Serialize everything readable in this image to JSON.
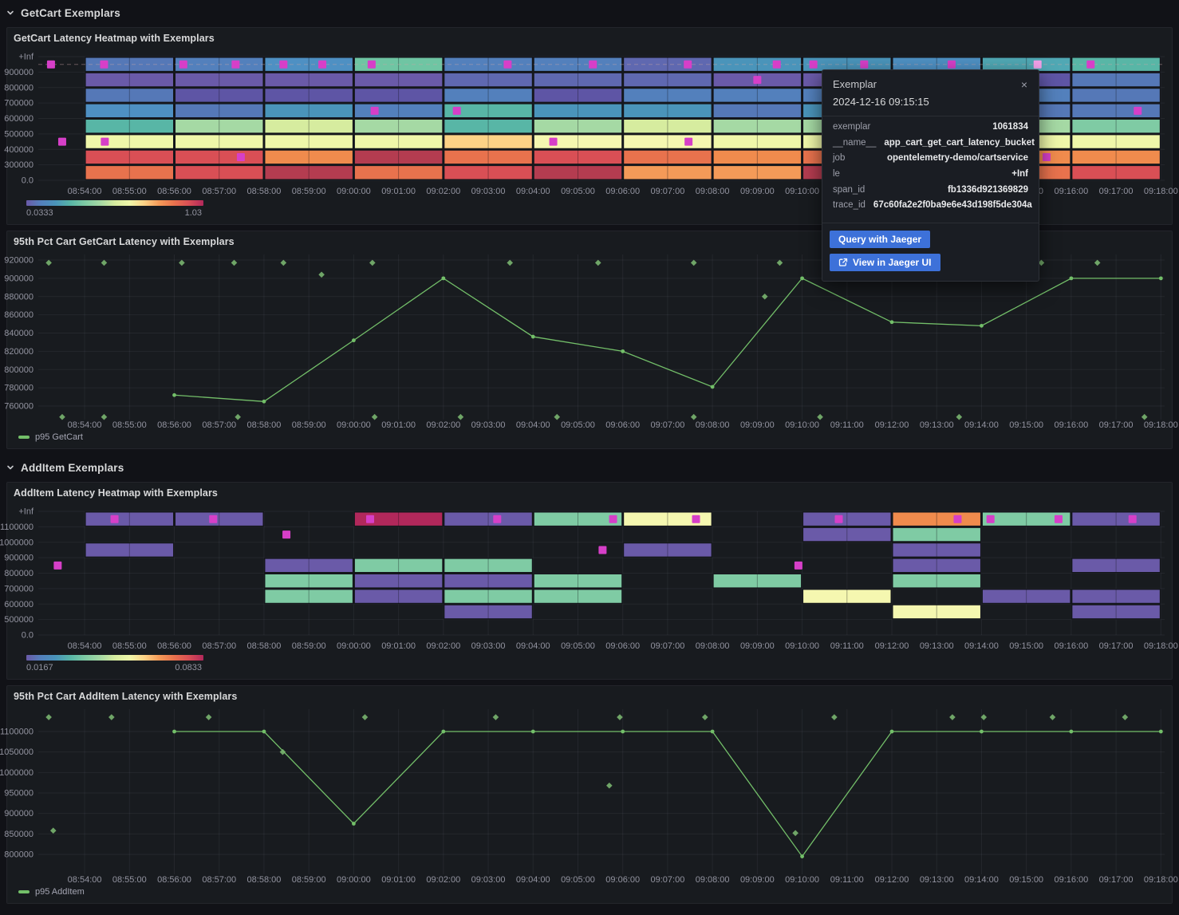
{
  "colors": {
    "background": "#111217",
    "panel": "#181b1f",
    "accent_button": "#3d71d9",
    "series_green": "#73bf69",
    "exemplar": "#d63fc8",
    "exemplar_highlight": "#f2a0e8",
    "axis_text": "rgba(204,204,220,0.68)"
  },
  "palette": {
    "pu": "#6a5aa8",
    "dp": "#5e55a5",
    "bp": "#5f68b0",
    "sb": "#5578b7",
    "bl": "#5380bc",
    "lb": "#4e90c3",
    "tb": "#4a94ba",
    "tt": "#50a8b4",
    "te": "#58b6a6",
    "gt": "#6fc5a3",
    "gr": "#7fcba4",
    "lg": "#a5d9a4",
    "yg": "#d6ec9f",
    "py": "#eff7a9",
    "cy": "#f5f7b0",
    "pe": "#fcd286",
    "or": "#f08b4d",
    "lo": "#f49a58",
    "od": "#e8724d",
    "re": "#d94f55",
    "dr": "#b43c50",
    "cr": "#b1285b"
  },
  "colorbar_stops": [
    "#6a5aa8",
    "#5380bc",
    "#4a94ba",
    "#58b6a6",
    "#7fcba4",
    "#a5d9a4",
    "#d6ec9f",
    "#eff7a9",
    "#fcd286",
    "#f49a58",
    "#e8724d",
    "#d94f55",
    "#b1285b"
  ],
  "time_axis": {
    "start": "08:52:58",
    "end": "09:18:05",
    "labels": [
      "08:54:00",
      "08:55:00",
      "08:56:00",
      "08:57:00",
      "08:58:00",
      "08:59:00",
      "09:00:00",
      "09:01:00",
      "09:02:00",
      "09:03:00",
      "09:04:00",
      "09:05:00",
      "09:06:00",
      "09:07:00",
      "09:08:00",
      "09:09:00",
      "09:10:00",
      "09:11:00",
      "09:12:00",
      "09:13:00",
      "09:14:00",
      "09:15:00",
      "09:16:00",
      "09:17:00",
      "09:18:00"
    ]
  },
  "sections": [
    {
      "title": "GetCart Exemplars"
    },
    {
      "title": "AddItem Exemplars"
    }
  ],
  "chart_data": [
    {
      "id": "getcart_heatmap",
      "type": "heatmap",
      "title": "GetCart Latency Heatmap with Exemplars",
      "y_ticks": [
        "+Inf",
        "900000",
        "800000",
        "700000",
        "600000",
        "500000",
        "400000",
        "300000",
        "0.0"
      ],
      "col_start": "08:54:00",
      "col_width_sec": 120,
      "dashed_exemplar_line": true,
      "columns": [
        [
          "sb",
          "pu",
          "sb",
          "lb",
          "te",
          "py",
          "re",
          "od"
        ],
        [
          "bl",
          "pu",
          "dp",
          "sb",
          "lg",
          "py",
          "re",
          "re"
        ],
        [
          "lb",
          "pu",
          "dp",
          "tb",
          "yg",
          "py",
          "or",
          "dr"
        ],
        [
          "gt",
          "pu",
          "dp",
          "bl",
          "lg",
          "py",
          "dr",
          "od"
        ],
        [
          "bl",
          "bp",
          "bl",
          "te",
          "te",
          "pe",
          "od",
          "re"
        ],
        [
          "bl",
          "bp",
          "dp",
          "tb",
          "lg",
          "cy",
          "re",
          "dr"
        ],
        [
          "bp",
          "bp",
          "bl",
          "tb",
          "yg",
          "cy",
          "od",
          "lo"
        ],
        [
          "tb",
          "pu",
          "bl",
          "sb",
          "lg",
          "py",
          "or",
          "lo"
        ],
        [
          "tb",
          "pu",
          "bl",
          "tb",
          "lg",
          "py",
          "od",
          "dr"
        ],
        [
          "lb",
          "pu",
          "dp",
          "tb",
          "lg",
          "py",
          "re",
          "od"
        ],
        [
          "tt",
          "dp",
          "bl",
          "sb",
          "lg",
          "py",
          "or",
          "od"
        ],
        [
          "te",
          "sb",
          "sb",
          "sb",
          "gr",
          "py",
          "or",
          "re"
        ]
      ],
      "exemplars": [
        [
          "08:53:15",
          0
        ],
        [
          "08:54:26",
          0
        ],
        [
          "08:56:12",
          0
        ],
        [
          "08:57:22",
          0
        ],
        [
          "08:58:26",
          0
        ],
        [
          "08:59:18",
          0
        ],
        [
          "09:00:24",
          0
        ],
        [
          "09:03:26",
          0
        ],
        [
          "09:05:20",
          0
        ],
        [
          "09:07:27",
          0
        ],
        [
          "09:09:26",
          0
        ],
        [
          "09:10:15",
          0
        ],
        [
          "09:11:23",
          0
        ],
        [
          "09:13:20",
          0
        ],
        [
          "09:15:15",
          0,
          true
        ],
        [
          "09:16:26",
          0
        ],
        [
          "09:09:00",
          1
        ],
        [
          "09:00:28",
          3
        ],
        [
          "09:02:18",
          3
        ],
        [
          "09:17:29",
          3
        ],
        [
          "08:53:30",
          5
        ],
        [
          "08:54:27",
          5
        ],
        [
          "09:04:27",
          5
        ],
        [
          "09:07:28",
          5
        ],
        [
          "08:57:29",
          6
        ],
        [
          "09:15:27",
          6
        ]
      ],
      "legend": {
        "min": "0.0333",
        "max": "1.03"
      }
    },
    {
      "id": "getcart_line",
      "type": "line",
      "title": "95th Pct Cart GetCart Latency with Exemplars",
      "y_ticks": [
        920000,
        900000,
        880000,
        860000,
        840000,
        820000,
        800000,
        780000,
        760000
      ],
      "series": [
        {
          "name": "p95 GetCart",
          "points": [
            [
              "08:56:00",
              772000
            ],
            [
              "08:58:00",
              765000
            ],
            [
              "09:00:00",
              832000
            ],
            [
              "09:02:00",
              900000
            ],
            [
              "09:04:00",
              836000
            ],
            [
              "09:06:00",
              820000
            ],
            [
              "09:08:00",
              781000
            ],
            [
              "09:10:00",
              900000
            ],
            [
              "09:12:00",
              852000
            ],
            [
              "09:14:00",
              848000
            ],
            [
              "09:16:00",
              900000
            ],
            [
              "09:18:00",
              900000
            ]
          ]
        }
      ],
      "exemplars": [
        [
          "08:53:12",
          917000
        ],
        [
          "08:54:26",
          917000
        ],
        [
          "08:56:10",
          917000
        ],
        [
          "08:57:20",
          917000
        ],
        [
          "08:58:26",
          917000
        ],
        [
          "08:59:17",
          904000
        ],
        [
          "09:00:25",
          917000
        ],
        [
          "09:03:29",
          917000
        ],
        [
          "09:05:27",
          917000
        ],
        [
          "09:07:35",
          917000
        ],
        [
          "09:09:10",
          880000
        ],
        [
          "09:09:30",
          917000
        ],
        [
          "09:15:20",
          917000
        ],
        [
          "09:16:35",
          917000
        ],
        [
          "08:53:30",
          748000
        ],
        [
          "08:54:26",
          748000
        ],
        [
          "08:57:25",
          748000
        ],
        [
          "09:00:28",
          748000
        ],
        [
          "09:02:23",
          748000
        ],
        [
          "09:04:32",
          748000
        ],
        [
          "09:07:35",
          748000
        ],
        [
          "09:10:24",
          748000
        ],
        [
          "09:13:30",
          748000
        ],
        [
          "09:17:38",
          748000
        ]
      ]
    },
    {
      "id": "additem_heatmap",
      "type": "heatmap",
      "title": "AddItem Latency Heatmap with Exemplars",
      "y_ticks": [
        "+Inf",
        "1100000",
        "1000000",
        "900000",
        "800000",
        "700000",
        "600000",
        "500000",
        "0.0"
      ],
      "col_start": "08:54:00",
      "col_width_sec": 120,
      "dashed_exemplar_line": false,
      "columns": [
        [
          "pu",
          null,
          "pu",
          null,
          null,
          null,
          null,
          null
        ],
        [
          "pu",
          null,
          null,
          null,
          null,
          null,
          null,
          null
        ],
        [
          null,
          null,
          null,
          "pu",
          "gr",
          "gr",
          null,
          null
        ],
        [
          "cr",
          null,
          null,
          "gr",
          "pu",
          "pu",
          null,
          null
        ],
        [
          "pu",
          null,
          null,
          "gr",
          "pu",
          "gr",
          "pu",
          null
        ],
        [
          "gr",
          null,
          null,
          null,
          "gr",
          "gr",
          null,
          null
        ],
        [
          "cy",
          null,
          "pu",
          null,
          null,
          null,
          null,
          null
        ],
        [
          null,
          null,
          null,
          null,
          "gr",
          null,
          null,
          null
        ],
        [
          "pu",
          "pu",
          null,
          null,
          null,
          "cy",
          null,
          null
        ],
        [
          "or",
          "gr",
          "pu",
          "pu",
          "gr",
          null,
          "cy",
          null
        ],
        [
          "gr",
          null,
          null,
          null,
          null,
          "pu",
          null,
          null
        ],
        [
          "pu",
          null,
          null,
          "pu",
          null,
          "pu",
          "pu",
          null
        ]
      ],
      "exemplars": [
        [
          "08:53:24",
          3
        ],
        [
          "08:54:40",
          0
        ],
        [
          "08:56:52",
          0
        ],
        [
          "08:58:30",
          1
        ],
        [
          "09:00:22",
          0
        ],
        [
          "09:03:12",
          0
        ],
        [
          "09:05:33",
          2
        ],
        [
          "09:05:47",
          0
        ],
        [
          "09:07:38",
          0
        ],
        [
          "09:09:55",
          3
        ],
        [
          "09:10:49",
          0
        ],
        [
          "09:13:28",
          0
        ],
        [
          "09:14:12",
          0
        ],
        [
          "09:15:43",
          0
        ],
        [
          "09:17:22",
          0
        ]
      ],
      "legend": {
        "min": "0.0167",
        "max": "0.0833"
      }
    },
    {
      "id": "additem_line",
      "type": "line",
      "title": "95th Pct Cart AddItem Latency with Exemplars",
      "y_ticks": [
        1100000,
        1050000,
        1000000,
        950000,
        900000,
        850000,
        800000
      ],
      "series": [
        {
          "name": "p95 AddItem",
          "points": [
            [
              "08:56:00",
              1100000
            ],
            [
              "08:58:00",
              1100000
            ],
            [
              "09:00:00",
              875000
            ],
            [
              "09:02:00",
              1100000
            ],
            [
              "09:04:00",
              1100000
            ],
            [
              "09:06:00",
              1100000
            ],
            [
              "09:08:00",
              1100000
            ],
            [
              "09:10:00",
              795000
            ],
            [
              "09:12:00",
              1100000
            ],
            [
              "09:14:00",
              1100000
            ],
            [
              "09:16:00",
              1100000
            ],
            [
              "09:18:00",
              1100000
            ]
          ]
        }
      ],
      "exemplars": [
        [
          "08:53:12",
          1135000
        ],
        [
          "08:54:36",
          1135000
        ],
        [
          "08:56:46",
          1135000
        ],
        [
          "09:00:15",
          1135000
        ],
        [
          "09:03:10",
          1135000
        ],
        [
          "09:05:56",
          1135000
        ],
        [
          "09:07:50",
          1135000
        ],
        [
          "09:10:43",
          1135000
        ],
        [
          "09:13:21",
          1135000
        ],
        [
          "09:14:03",
          1135000
        ],
        [
          "09:15:35",
          1135000
        ],
        [
          "09:17:12",
          1135000
        ],
        [
          "08:53:18",
          858000
        ],
        [
          "08:58:25",
          1050000
        ],
        [
          "09:05:42",
          968000
        ],
        [
          "09:09:51",
          852000
        ]
      ]
    }
  ],
  "tooltip": {
    "title": "Exemplar",
    "timestamp": "2024-12-16 09:15:15",
    "fields": [
      {
        "key": "exemplar",
        "value": "1061834"
      },
      {
        "key": "__name__",
        "value": "app_cart_get_cart_latency_bucket"
      },
      {
        "key": "job",
        "value": "opentelemetry-demo/cartservice"
      },
      {
        "key": "le",
        "value": "+Inf"
      },
      {
        "key": "span_id",
        "value": "fb1336d921369829"
      },
      {
        "key": "trace_id",
        "value": "67c60fa2e2f0ba9e6e43d198f5de304a"
      }
    ],
    "buttons": [
      {
        "label": "Query with Jaeger"
      },
      {
        "label": "View in Jaeger UI",
        "icon": "external-link-icon"
      }
    ]
  }
}
